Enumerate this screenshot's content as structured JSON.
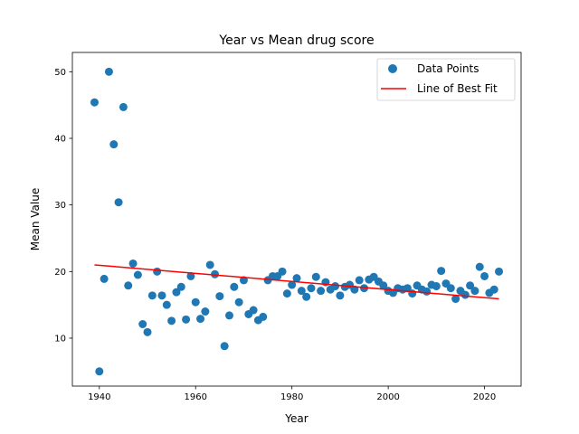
{
  "chart_data": {
    "type": "scatter",
    "title": "Year vs Mean drug score",
    "xlabel": "Year",
    "ylabel": "Mean Value",
    "xlim": [
      1934.4,
      2027.6
    ],
    "ylim": [
      2.8,
      52.9
    ],
    "xticks": [
      1940,
      1960,
      1980,
      2000,
      2020
    ],
    "yticks": [
      10,
      20,
      30,
      40,
      50
    ],
    "grid": false,
    "legend_position": "top-right",
    "colors": {
      "points": "#1f77b4",
      "fit": "#ff0000"
    },
    "series": [
      {
        "name": "Data Points",
        "x": [
          1939,
          1940,
          1941,
          1942,
          1943,
          1944,
          1945,
          1946,
          1947,
          1948,
          1949,
          1950,
          1951,
          1952,
          1953,
          1954,
          1955,
          1956,
          1957,
          1958,
          1959,
          1960,
          1961,
          1962,
          1963,
          1964,
          1965,
          1966,
          1967,
          1968,
          1969,
          1970,
          1971,
          1972,
          1973,
          1974,
          1975,
          1976,
          1977,
          1978,
          1979,
          1980,
          1981,
          1982,
          1983,
          1984,
          1985,
          1986,
          1987,
          1988,
          1989,
          1990,
          1991,
          1992,
          1993,
          1994,
          1995,
          1996,
          1997,
          1998,
          1999,
          2000,
          2001,
          2002,
          2003,
          2004,
          2005,
          2006,
          2007,
          2008,
          2009,
          2010,
          2011,
          2012,
          2013,
          2014,
          2015,
          2016,
          2017,
          2018,
          2019,
          2020,
          2021,
          2022,
          2023
        ],
        "y": [
          45.4,
          5.0,
          18.9,
          50.0,
          39.1,
          30.4,
          44.7,
          17.9,
          21.2,
          19.5,
          12.1,
          10.9,
          16.4,
          20.0,
          16.4,
          15.0,
          12.6,
          16.9,
          17.7,
          12.8,
          19.3,
          15.4,
          12.9,
          14.0,
          21.0,
          19.6,
          16.3,
          8.8,
          13.4,
          17.7,
          15.4,
          18.7,
          13.6,
          14.2,
          12.7,
          13.2,
          18.7,
          19.3,
          19.3,
          20.0,
          16.7,
          18.0,
          19.0,
          17.1,
          16.2,
          17.5,
          19.2,
          17.1,
          18.4,
          17.3,
          17.8,
          16.4,
          17.7,
          18.0,
          17.3,
          18.7,
          17.5,
          18.8,
          19.2,
          18.5,
          17.9,
          17.1,
          16.8,
          17.5,
          17.3,
          17.5,
          16.7,
          17.9,
          17.3,
          17.0,
          18.0,
          17.8,
          20.1,
          18.2,
          17.5,
          15.9,
          17.1,
          16.5,
          17.9,
          17.1,
          20.7,
          19.3,
          16.8,
          17.3,
          20.0
        ]
      },
      {
        "name": "Line of Best Fit",
        "x": [
          1939,
          2023
        ],
        "y": [
          21.0,
          15.9
        ]
      }
    ]
  }
}
